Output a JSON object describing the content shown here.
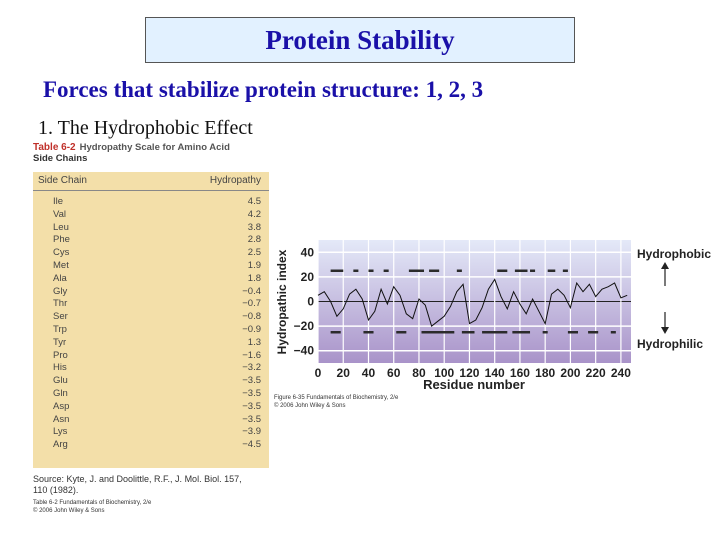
{
  "slide": {
    "title": "Protein Stability",
    "subtitle": "Forces that stabilize protein structure: 1, 2, 3",
    "point": "1. The Hydrophobic Effect"
  },
  "table": {
    "label": "Table 6-2",
    "title": "Hydropathy Scale for Amino Acid Side Chains",
    "title_line1": "Hydropathy Scale for Amino Acid",
    "title_line2": "Side Chains",
    "col_side_chain": "Side Chain",
    "col_hydropathy": "Hydropathy",
    "rows": [
      {
        "name": "Ile",
        "value": "4.5"
      },
      {
        "name": "Val",
        "value": "4.2"
      },
      {
        "name": "Leu",
        "value": "3.8"
      },
      {
        "name": "Phe",
        "value": "2.8"
      },
      {
        "name": "Cys",
        "value": "2.5"
      },
      {
        "name": "Met",
        "value": "1.9"
      },
      {
        "name": "Ala",
        "value": "1.8"
      },
      {
        "name": "Gly",
        "value": "−0.4"
      },
      {
        "name": "Thr",
        "value": "−0.7"
      },
      {
        "name": "Ser",
        "value": "−0.8"
      },
      {
        "name": "Trp",
        "value": "−0.9"
      },
      {
        "name": "Tyr",
        "value": "1.3"
      },
      {
        "name": "Pro",
        "value": "−1.6"
      },
      {
        "name": "His",
        "value": "−3.2"
      },
      {
        "name": "Glu",
        "value": "−3.5"
      },
      {
        "name": "Gln",
        "value": "−3.5"
      },
      {
        "name": "Asp",
        "value": "−3.5"
      },
      {
        "name": "Asn",
        "value": "−3.5"
      },
      {
        "name": "Lys",
        "value": "−3.9"
      },
      {
        "name": "Arg",
        "value": "−4.5"
      }
    ],
    "source_line1": "Source: Kyte, J. and Doolittle, R.F., J. Mol. Biol. 157,",
    "source_line2": "110 (1982).",
    "caption_line1": "Table 6-2 Fundamentals of Biochemistry, 2/e",
    "caption_line2": "© 2006 John Wiley & Sons"
  },
  "figure": {
    "caption_line1": "Figure 6-35 Fundamentals of Biochemistry, 2/e",
    "caption_line2": "© 2006 John Wiley & Sons"
  },
  "chart_data": {
    "type": "line",
    "ylabel": "Hydropathic index",
    "xlabel": "Residue number",
    "xlim": [
      0,
      248
    ],
    "ylim": [
      -50,
      50
    ],
    "xticks": [
      0,
      20,
      40,
      60,
      80,
      100,
      120,
      140,
      160,
      180,
      200,
      220,
      240
    ],
    "yticks": [
      40,
      20,
      0,
      -20,
      -40
    ],
    "ytick_labels": [
      "40",
      "20",
      "0",
      "−20",
      "−40"
    ],
    "top_label": "Hydrophobic",
    "bottom_label": "Hydrophilic",
    "colors": {
      "top": "#e4e9f8",
      "bottom": "#a993c9",
      "line": "#111111"
    },
    "series": [
      {
        "x": [
          0,
          5,
          10,
          15,
          20,
          25,
          30,
          35,
          40,
          45,
          50,
          55,
          60,
          65,
          70,
          75,
          80,
          85,
          90,
          95,
          100,
          105,
          110,
          115,
          120,
          125,
          130,
          135,
          140,
          145,
          150,
          155,
          160,
          165,
          170,
          175,
          180,
          185,
          190,
          195,
          200,
          205,
          210,
          215,
          220,
          225,
          230,
          235,
          240,
          245
        ],
        "values": [
          5,
          8,
          0,
          -12,
          -6,
          6,
          10,
          2,
          -15,
          -8,
          10,
          -2,
          12,
          5,
          -10,
          -14,
          2,
          -3,
          -20,
          -16,
          -12,
          -4,
          8,
          14,
          -18,
          -15,
          -5,
          10,
          18,
          4,
          -6,
          8,
          -2,
          -10,
          2,
          -8,
          -18,
          6,
          10,
          5,
          -5,
          15,
          8,
          14,
          4,
          10,
          12,
          15,
          3,
          5
        ]
      }
    ],
    "top_segments": [
      [
        10,
        20
      ],
      [
        28,
        32
      ],
      [
        40,
        44
      ],
      [
        52,
        56
      ],
      [
        72,
        84
      ],
      [
        88,
        96
      ],
      [
        110,
        114
      ],
      [
        142,
        150
      ],
      [
        156,
        166
      ],
      [
        168,
        172
      ],
      [
        182,
        188
      ],
      [
        194,
        198
      ]
    ],
    "bottom_segments": [
      [
        10,
        18
      ],
      [
        36,
        44
      ],
      [
        62,
        70
      ],
      [
        82,
        108
      ],
      [
        114,
        124
      ],
      [
        130,
        150
      ],
      [
        154,
        168
      ],
      [
        178,
        182
      ],
      [
        198,
        206
      ],
      [
        214,
        222
      ],
      [
        232,
        236
      ]
    ]
  }
}
